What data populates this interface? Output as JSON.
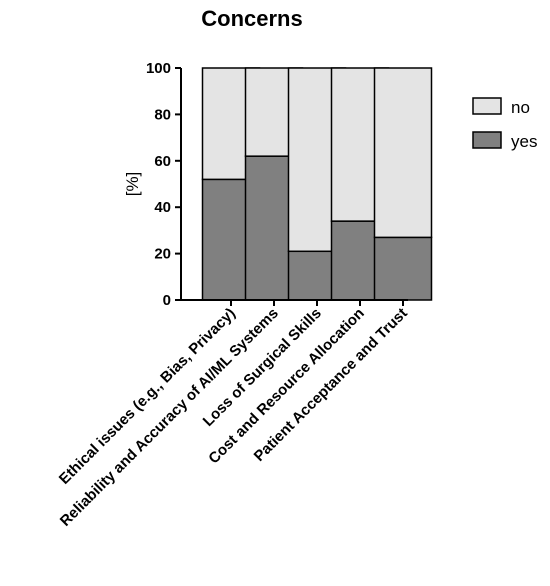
{
  "chart_data": {
    "type": "bar",
    "stacked": true,
    "title": "Concerns",
    "xlabel": "",
    "ylabel": "[%]",
    "ylim": [
      0,
      100
    ],
    "yticks": [
      0,
      20,
      40,
      60,
      80,
      100
    ],
    "grid": false,
    "legend_position": "right",
    "categories": [
      "Ethical issues (e.g., Bias, Privacy)",
      "Reliability and Accuracy of AI/ML Systems",
      "Loss of Surgical Skills",
      "Cost and Resource Allocation",
      "Patient Acceptance and Trust"
    ],
    "series": [
      {
        "name": "yes",
        "color": "#808080",
        "values": [
          52,
          62,
          21,
          34,
          27
        ]
      },
      {
        "name": "no",
        "color": "#e4e4e4",
        "values": [
          48,
          38,
          79,
          66,
          73
        ]
      }
    ],
    "legend": [
      {
        "name": "no",
        "color": "#e4e4e4"
      },
      {
        "name": "yes",
        "color": "#808080"
      }
    ]
  }
}
